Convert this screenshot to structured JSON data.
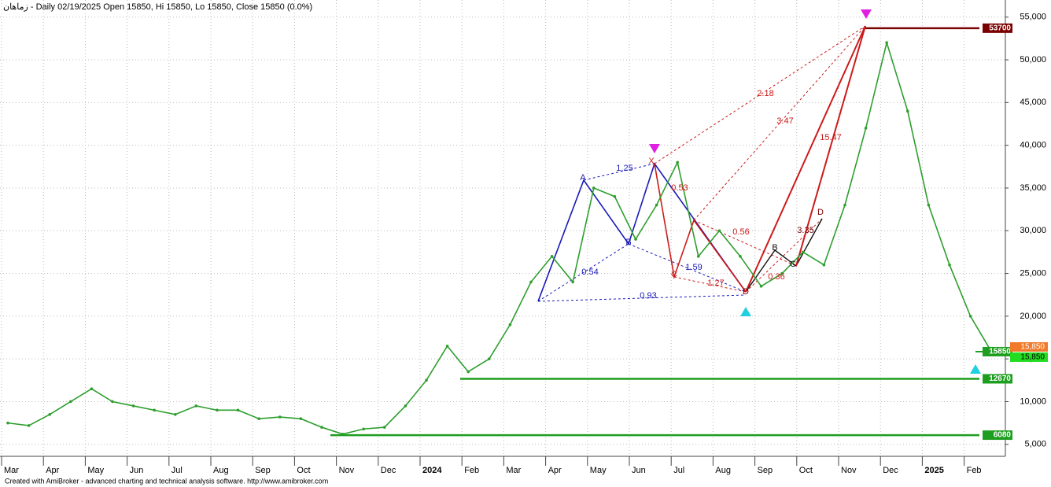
{
  "chart_data": {
    "type": "line",
    "title": "زماهان - Daily 02/19/2025 Open 15850, Hi 15850, Lo 15850, Close 15850 (0.0%)",
    "footer": "Created with AmiBroker - advanced charting and technical analysis software. http://www.amibroker.com",
    "categories": [
      "Mar",
      null,
      "Apr",
      null,
      "May",
      null,
      "Jun",
      null,
      "Jul",
      null,
      "Aug",
      null,
      "Sep",
      null,
      "Oct",
      null,
      "Nov",
      null,
      "Dec",
      null,
      "2024",
      null,
      "Feb",
      null,
      "Mar",
      null,
      "Apr",
      null,
      "May",
      null,
      "Jun",
      null,
      "Jul",
      null,
      "Aug",
      null,
      "Sep",
      null,
      "Oct",
      null,
      "Nov",
      null,
      "Dec",
      null,
      "2025",
      null,
      "Feb",
      null
    ],
    "series": [
      {
        "name": "Close",
        "color": "#2e9e2e",
        "values": [
          7500,
          7200,
          8500,
          10000,
          11500,
          10000,
          9500,
          9000,
          8500,
          9500,
          9000,
          9000,
          8000,
          8200,
          8000,
          7000,
          6200,
          6800,
          7000,
          9500,
          12500,
          16500,
          13500,
          15000,
          19000,
          24000,
          27000,
          24000,
          35000,
          34000,
          29000,
          33000,
          38000,
          27000,
          30000,
          27000,
          23500,
          25000,
          27500,
          26000,
          33000,
          42000,
          52000,
          44000,
          33000,
          26000,
          20000,
          15850
        ]
      }
    ],
    "ylim": [
      3600,
      57000
    ],
    "yticks": [
      {
        "value": 5000,
        "label": "5,000"
      },
      {
        "value": 10000,
        "label": "10,000"
      },
      {
        "value": 15000,
        "label": "15,000"
      },
      {
        "value": 20000,
        "label": "20,000"
      },
      {
        "value": 25000,
        "label": "25,000"
      },
      {
        "value": 30000,
        "label": "30,000"
      },
      {
        "value": 35000,
        "label": "35,000"
      },
      {
        "value": 40000,
        "label": "40,000"
      },
      {
        "value": 45000,
        "label": "45,000"
      },
      {
        "value": 50000,
        "label": "50,000"
      },
      {
        "value": 55000,
        "label": "55,000"
      }
    ],
    "grid": true,
    "levels": [
      {
        "value": 53700,
        "color": "#7a0000"
      },
      {
        "value": 12670,
        "color": "#1e9e1e"
      },
      {
        "value": 6080,
        "color": "#1e9e1e"
      }
    ],
    "last_price": {
      "value": 15850,
      "labels": [
        "15850",
        "15,850",
        "15,850"
      ]
    },
    "annotations": [
      {
        "text": "1.25"
      },
      {
        "text": "0.54"
      },
      {
        "text": "0.93"
      },
      {
        "text": "1.59"
      },
      {
        "text": "0.53"
      },
      {
        "text": "1.27"
      },
      {
        "text": "0.56"
      },
      {
        "text": "2.18"
      },
      {
        "text": "3.47"
      },
      {
        "text": "15.47"
      },
      {
        "text": "0.36"
      },
      {
        "text": "3.35"
      },
      {
        "text": "X"
      },
      {
        "text": "A"
      },
      {
        "text": "B"
      },
      {
        "text": "C"
      },
      {
        "text": "D"
      },
      {
        "text": "B"
      },
      {
        "text": "C"
      },
      {
        "text": "D"
      }
    ]
  }
}
